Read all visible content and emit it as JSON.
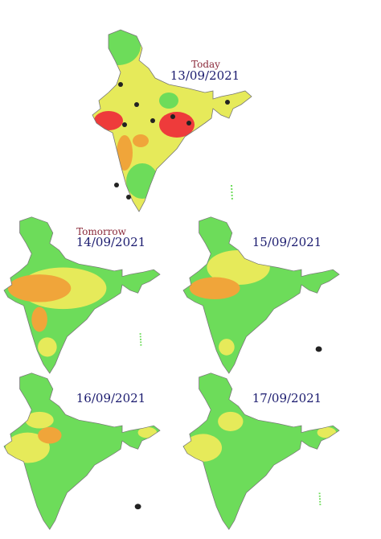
{
  "panels": [
    {
      "label": "Today",
      "date": "13/09/2021"
    },
    {
      "label": "Tomorrow",
      "date": "14/09/2021"
    },
    {
      "date": "15/09/2021"
    },
    {
      "date": "16/09/2021"
    },
    {
      "date": "17/09/2021"
    }
  ]
}
